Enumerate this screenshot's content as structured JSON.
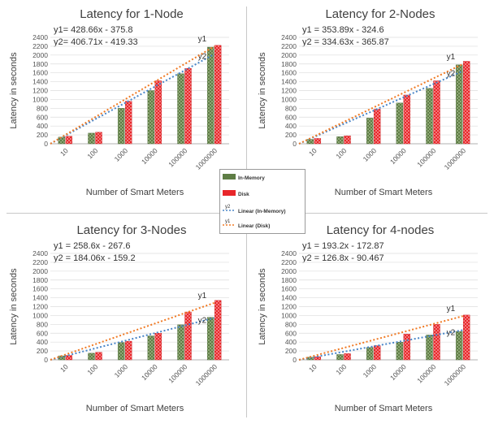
{
  "colors": {
    "in_memory": "#5e7d45",
    "disk": "#e8262a",
    "trend_in_memory": "#4a86c8",
    "trend_disk": "#f07a24",
    "grid": "#dcdcdc",
    "text": "#555555"
  },
  "legend": {
    "items": [
      {
        "label": "In-Memory",
        "kind": "bar",
        "color_key": "in_memory"
      },
      {
        "label": "Disk",
        "kind": "bar",
        "color_key": "disk"
      },
      {
        "label": "Linear (In-Memory)",
        "kind": "line",
        "color_key": "trend_in_memory",
        "marker": "y2"
      },
      {
        "label": "Linear (Disk)",
        "kind": "line",
        "color_key": "trend_disk",
        "marker": "y1"
      }
    ]
  },
  "chart_data": [
    {
      "type": "bar",
      "title": "Latency for 1-Node",
      "xlabel": "Number of Smart Meters",
      "ylabel": "Latency in seconds",
      "ylim": [
        0,
        2400
      ],
      "yticks": [
        0,
        200,
        400,
        600,
        800,
        1000,
        1200,
        1400,
        1600,
        1800,
        2000,
        2200,
        2400
      ],
      "categories": [
        "10",
        "100",
        "1000",
        "10000",
        "100000",
        "1000000"
      ],
      "series": [
        {
          "name": "In-Memory",
          "values": [
            150,
            240,
            800,
            1200,
            1580,
            2180
          ]
        },
        {
          "name": "Disk",
          "values": [
            170,
            260,
            960,
            1420,
            1700,
            2220
          ]
        }
      ],
      "trendlines": [
        {
          "name": "Linear (In-Memory)",
          "slope": 406.71,
          "intercept": -419.33,
          "label": "y2"
        },
        {
          "name": "Linear (Disk)",
          "slope": 428.66,
          "intercept": -375.8,
          "label": "y1"
        }
      ],
      "equations": [
        "y1= 428.66x - 375.8",
        "y2= 406.71x - 419.33"
      ],
      "grid": true
    },
    {
      "type": "bar",
      "title": "Latency for 2-Nodes",
      "xlabel": "Number of Smart Meters",
      "ylabel": "Latency in seconds",
      "ylim": [
        0,
        2400
      ],
      "yticks": [
        0,
        200,
        400,
        600,
        800,
        1000,
        1200,
        1400,
        1600,
        1800,
        2000,
        2200,
        2400
      ],
      "categories": [
        "10",
        "100",
        "1000",
        "10000",
        "100000",
        "1000000"
      ],
      "series": [
        {
          "name": "In-Memory",
          "values": [
            100,
            160,
            580,
            920,
            1250,
            1780
          ]
        },
        {
          "name": "Disk",
          "values": [
            120,
            180,
            780,
            1100,
            1420,
            1860
          ]
        }
      ],
      "trendlines": [
        {
          "name": "Linear (In-Memory)",
          "slope": 334.63,
          "intercept": -365.87,
          "label": "y2"
        },
        {
          "name": "Linear (Disk)",
          "slope": 353.89,
          "intercept": -324.6,
          "label": "y1"
        }
      ],
      "equations": [
        "y1 = 353.89x - 324.6",
        "y2 = 334.63x - 365.87"
      ],
      "grid": true
    },
    {
      "type": "bar",
      "title": "Latency for 3-Nodes",
      "xlabel": "Number of Smart Meters",
      "ylabel": "Latency in seconds",
      "ylim": [
        0,
        2400
      ],
      "yticks": [
        0,
        200,
        400,
        600,
        800,
        1000,
        1200,
        1400,
        1600,
        1800,
        2000,
        2200,
        2400
      ],
      "categories": [
        "10",
        "100",
        "1000",
        "10000",
        "100000",
        "1000000"
      ],
      "series": [
        {
          "name": "In-Memory",
          "values": [
            90,
            150,
            390,
            540,
            790,
            960
          ]
        },
        {
          "name": "Disk",
          "values": [
            100,
            170,
            420,
            600,
            1080,
            1340
          ]
        }
      ],
      "trendlines": [
        {
          "name": "Linear (In-Memory)",
          "slope": 184.06,
          "intercept": -159.2,
          "label": "y2"
        },
        {
          "name": "Linear (Disk)",
          "slope": 258.6,
          "intercept": -267.6,
          "label": "y1"
        }
      ],
      "equations": [
        "y1 = 258.6x - 267.6",
        "y2 = 184.06x - 159.2"
      ],
      "grid": true
    },
    {
      "type": "bar",
      "title": "Latency for 4-nodes",
      "xlabel": "Number of Smart Meters",
      "ylabel": "Latency in seconds",
      "ylim": [
        0,
        2400
      ],
      "yticks": [
        0,
        200,
        400,
        600,
        800,
        1000,
        1200,
        1400,
        1600,
        1800,
        2000,
        2200,
        2400
      ],
      "categories": [
        "10",
        "100",
        "1000",
        "10000",
        "100000",
        "1000000"
      ],
      "series": [
        {
          "name": "In-Memory",
          "values": [
            60,
            120,
            280,
            400,
            560,
            640
          ]
        },
        {
          "name": "Disk",
          "values": [
            70,
            140,
            320,
            580,
            800,
            1010
          ]
        }
      ],
      "trendlines": [
        {
          "name": "Linear (In-Memory)",
          "slope": 126.8,
          "intercept": -90.467,
          "label": "y2"
        },
        {
          "name": "Linear (Disk)",
          "slope": 193.2,
          "intercept": -172.87,
          "label": "y1"
        }
      ],
      "equations": [
        "y1 = 193.2x - 172.87",
        "y2 = 126.8x - 90.467"
      ],
      "grid": true
    }
  ]
}
